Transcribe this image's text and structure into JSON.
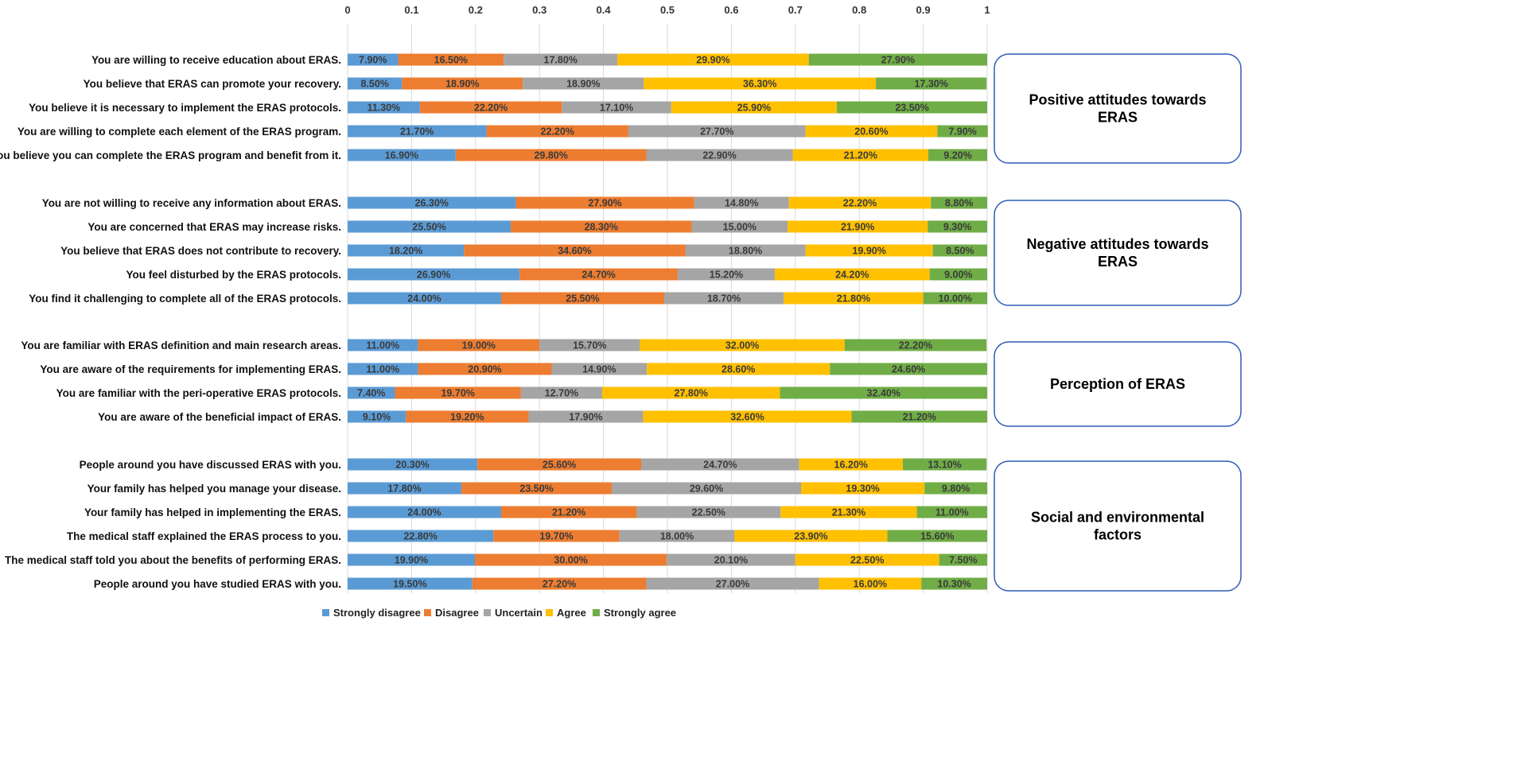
{
  "chart_data": {
    "type": "bar",
    "orientation": "horizontal-stacked-100",
    "xlim": [
      0,
      1
    ],
    "x_ticks": [
      "0",
      "0.1",
      "0.2",
      "0.3",
      "0.4",
      "0.5",
      "0.6",
      "0.7",
      "0.8",
      "0.9",
      "1"
    ],
    "grid": true,
    "legend_position": "bottom",
    "series_names": [
      "Strongly disagree",
      "Disagree",
      "Uncertain",
      "Agree",
      "Strongly agree"
    ],
    "colors": [
      "#5B9BD5",
      "#ED7D31",
      "#A5A5A5",
      "#FFC000",
      "#70AD47"
    ],
    "groups": [
      {
        "title": "Positive attitudes towards ERAS",
        "rows": [
          {
            "label": "You are willing to receive education about ERAS.",
            "values": [
              7.9,
              16.5,
              17.8,
              29.9,
              27.9
            ]
          },
          {
            "label": "You believe that ERAS can promote your recovery.",
            "values": [
              8.5,
              18.9,
              18.9,
              36.3,
              17.3
            ]
          },
          {
            "label": "You believe it is necessary to implement the ERAS protocols.",
            "values": [
              11.3,
              22.2,
              17.1,
              25.9,
              23.5
            ]
          },
          {
            "label": "You are willing to complete each element of the ERAS program.",
            "values": [
              21.7,
              22.2,
              27.7,
              20.6,
              7.9
            ]
          },
          {
            "label": "You believe you can complete the ERAS program and benefit from it.",
            "values": [
              16.9,
              29.8,
              22.9,
              21.2,
              9.2
            ]
          }
        ]
      },
      {
        "title": "Negative attitudes towards ERAS",
        "rows": [
          {
            "label": "You are not willing to receive any information about ERAS.",
            "values": [
              26.3,
              27.9,
              14.8,
              22.2,
              8.8
            ]
          },
          {
            "label": "You are concerned that ERAS may increase risks.",
            "values": [
              25.5,
              28.3,
              15.0,
              21.9,
              9.3
            ]
          },
          {
            "label": "You believe that ERAS does not contribute to recovery.",
            "values": [
              18.2,
              34.6,
              18.8,
              19.9,
              8.5
            ]
          },
          {
            "label": "You feel disturbed by the ERAS protocols.",
            "values": [
              26.9,
              24.7,
              15.2,
              24.2,
              9.0
            ]
          },
          {
            "label": "You find it challenging to complete all of the ERAS protocols.",
            "values": [
              24.0,
              25.5,
              18.7,
              21.8,
              10.0
            ]
          }
        ]
      },
      {
        "title": "Perception of ERAS",
        "rows": [
          {
            "label": "You are familiar with ERAS definition and main research areas.",
            "values": [
              11.0,
              19.0,
              15.7,
              32.0,
              22.2
            ]
          },
          {
            "label": "You are aware of the requirements for implementing ERAS.",
            "values": [
              11.0,
              20.9,
              14.9,
              28.6,
              24.6
            ]
          },
          {
            "label": "You are familiar with the peri-operative ERAS protocols.",
            "values": [
              7.4,
              19.7,
              12.7,
              27.8,
              32.4
            ]
          },
          {
            "label": "You are aware of the beneficial impact of ERAS.",
            "values": [
              9.1,
              19.2,
              17.9,
              32.6,
              21.2
            ]
          }
        ]
      },
      {
        "title": "Social and environmental factors",
        "rows": [
          {
            "label": "People around you have discussed ERAS with you.",
            "values": [
              20.3,
              25.6,
              24.7,
              16.2,
              13.1
            ]
          },
          {
            "label": "Your family has helped you manage your disease.",
            "values": [
              17.8,
              23.5,
              29.6,
              19.3,
              9.8
            ]
          },
          {
            "label": "Your family has helped in implementing the ERAS.",
            "values": [
              24.0,
              21.2,
              22.5,
              21.3,
              11.0
            ]
          },
          {
            "label": "The medical staff explained the ERAS process to you.",
            "values": [
              22.8,
              19.7,
              18.0,
              23.9,
              15.6
            ]
          },
          {
            "label": "The medical staff told you about the benefits of performing ERAS.",
            "values": [
              19.9,
              30.0,
              20.1,
              22.5,
              7.5
            ]
          },
          {
            "label": "People around you have studied ERAS with you.",
            "values": [
              19.5,
              27.2,
              27.0,
              16.0,
              10.3
            ]
          }
        ]
      }
    ]
  }
}
